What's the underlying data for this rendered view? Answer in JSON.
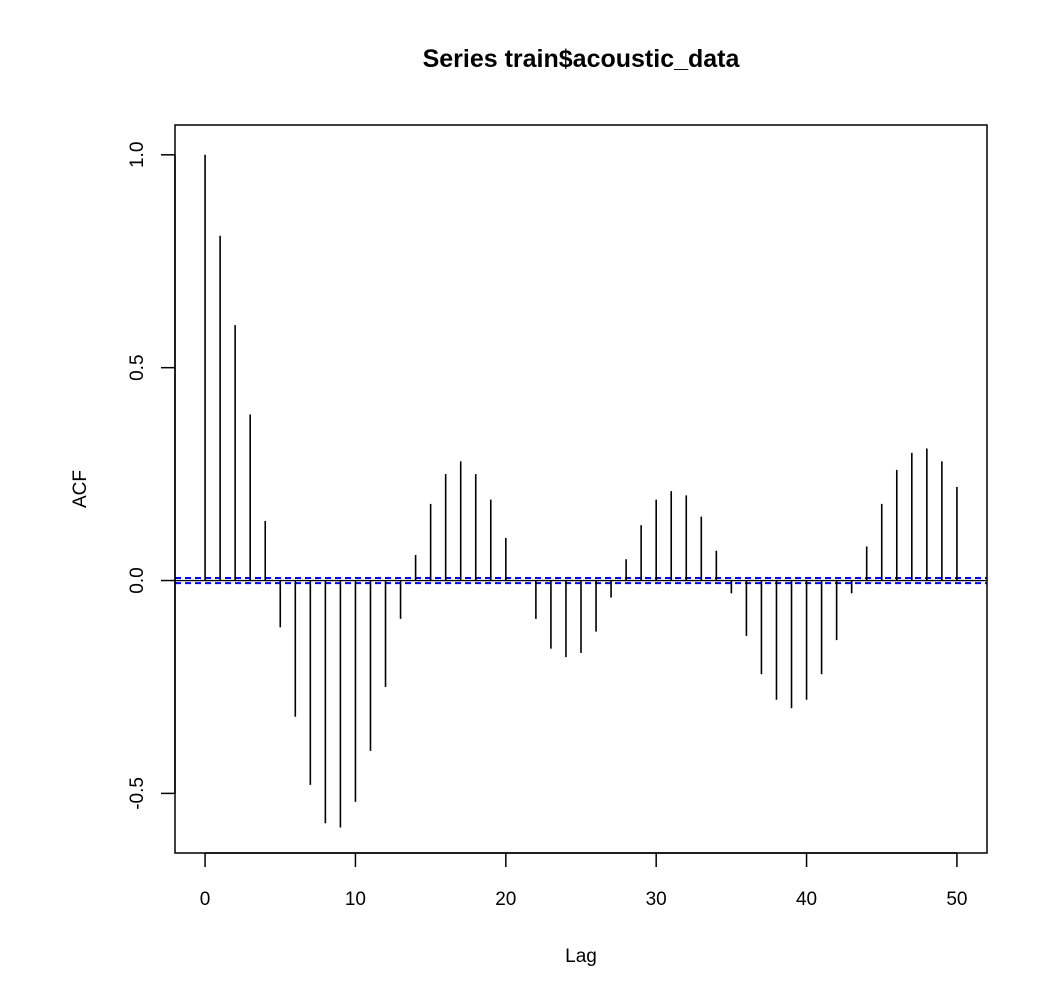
{
  "chart_data": {
    "type": "bar",
    "title": "Series  train$acoustic_data",
    "xlabel": "Lag",
    "ylabel": "ACF",
    "xlim": [
      -2,
      52
    ],
    "ylim": [
      -0.64,
      1.07
    ],
    "x_ticks": [
      0,
      10,
      20,
      30,
      40,
      50
    ],
    "x_tick_labels": [
      "0",
      "10",
      "20",
      "30",
      "40",
      "50"
    ],
    "y_ticks": [
      -0.5,
      0.0,
      0.5,
      1.0
    ],
    "y_tick_labels": [
      "-0.5",
      "0.0",
      "0.5",
      "1.0"
    ],
    "ci_bound": 0.006,
    "ci_color": "#0000ff",
    "bar_color": "#000000",
    "lags": [
      0,
      1,
      2,
      3,
      4,
      5,
      6,
      7,
      8,
      9,
      10,
      11,
      12,
      13,
      14,
      15,
      16,
      17,
      18,
      19,
      20,
      21,
      22,
      23,
      24,
      25,
      26,
      27,
      28,
      29,
      30,
      31,
      32,
      33,
      34,
      35,
      36,
      37,
      38,
      39,
      40,
      41,
      42,
      43,
      44,
      45,
      46,
      47,
      48,
      49,
      50
    ],
    "values": [
      1.0,
      0.81,
      0.6,
      0.39,
      0.14,
      -0.11,
      -0.32,
      -0.48,
      -0.57,
      -0.58,
      -0.52,
      -0.4,
      -0.25,
      -0.09,
      0.06,
      0.18,
      0.25,
      0.28,
      0.25,
      0.19,
      0.1,
      0.0,
      -0.09,
      -0.16,
      -0.18,
      -0.17,
      -0.12,
      -0.04,
      0.05,
      0.13,
      0.19,
      0.21,
      0.2,
      0.15,
      0.07,
      -0.03,
      -0.13,
      -0.22,
      -0.28,
      -0.3,
      -0.28,
      -0.22,
      -0.14,
      -0.03,
      0.08,
      0.18,
      0.26,
      0.3,
      0.31,
      0.28,
      0.22
    ]
  }
}
